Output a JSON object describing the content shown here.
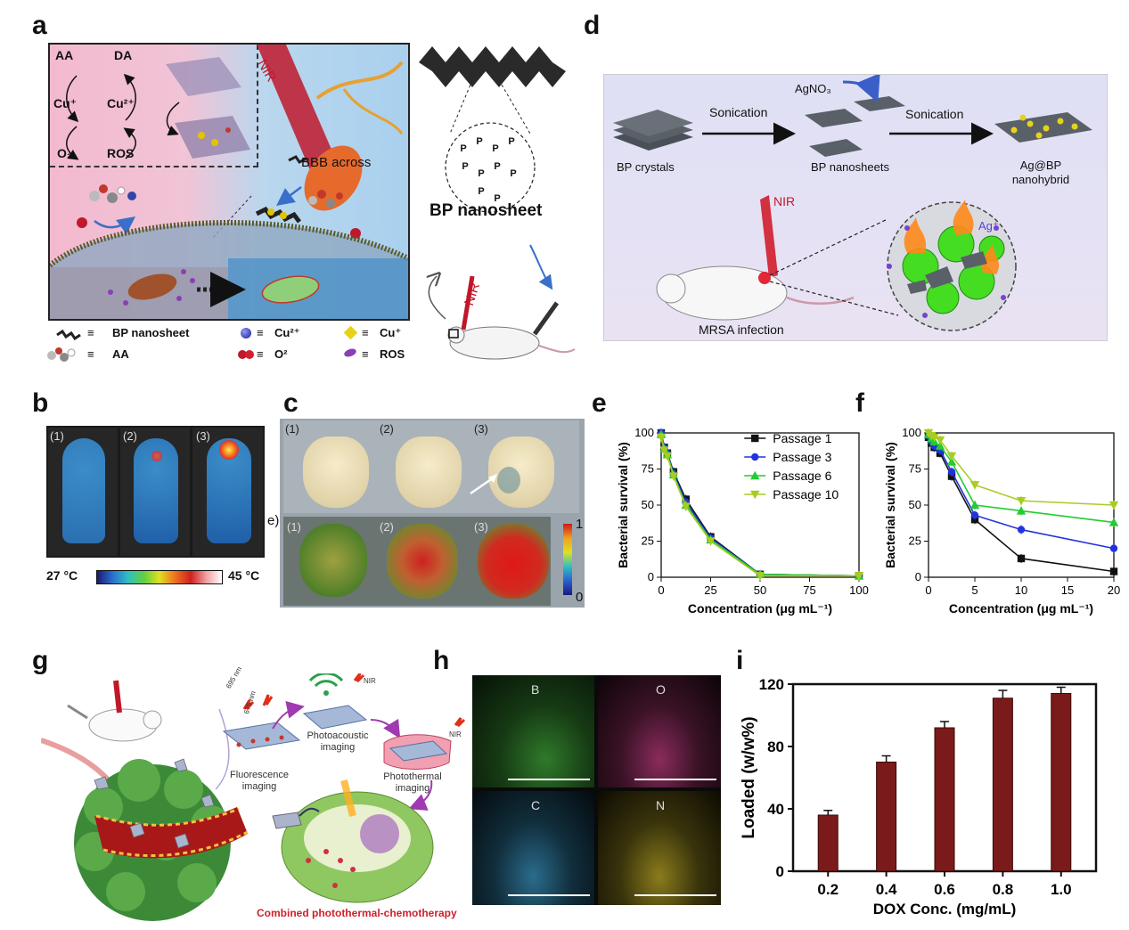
{
  "labels": {
    "a": "a",
    "b": "b",
    "c": "c",
    "d": "d",
    "e": "e",
    "f": "f",
    "g": "g",
    "h": "h",
    "i": "i"
  },
  "panel_a": {
    "aa": "AA",
    "da": "DA",
    "cu_plus": "Cu⁺",
    "cu2_plus": "Cu²⁺",
    "o2": "O₂",
    "ros": "ROS",
    "nir": "NIR",
    "bbb": "BBB across",
    "bp_nanosheet": "BP nanosheet",
    "legend": [
      {
        "sym": "≡",
        "text": "BP nanosheet"
      },
      {
        "sym": "≡",
        "text": "Cu²⁺"
      },
      {
        "sym": "≡",
        "text": "Cu⁺"
      },
      {
        "sym": "≡",
        "text": "AA"
      },
      {
        "sym": "≡",
        "text": "O²"
      },
      {
        "sym": "≡",
        "text": "ROS"
      }
    ],
    "p_atom": "P",
    "nir2": "NIR"
  },
  "panel_b": {
    "n1": "(1)",
    "n2": "(2)",
    "n3": "(3)",
    "tmin": "27 °C",
    "tmax": "45 °C"
  },
  "panel_c": {
    "n1": "(1)",
    "n2": "(2)",
    "n3": "(3)",
    "e": "e)",
    "b1": "(1)",
    "b2": "(2)",
    "b3": "(3)",
    "cmax": "1",
    "cmin": "0"
  },
  "panel_d": {
    "agno3": "AgNO₃",
    "sonication1": "Sonication",
    "sonication2": "Sonication",
    "bp_crystals": "BP crystals",
    "bp_nanosheets": "BP nanosheets",
    "agbp1": "Ag@BP",
    "agbp2": "nanohybrid",
    "nir": "NIR",
    "ag": "Ag⁺",
    "mrsa": "MRSA infection"
  },
  "panel_g": {
    "fluor1": "Fluorescence",
    "fluor2": "imaging",
    "photoac1": "Photoacoustic",
    "photoac2": "imaging",
    "phototh1": "Photothermal",
    "phototh2": "imaging",
    "nm695": "695 nm",
    "nm675": "675 nm",
    "nir1": "NIR",
    "nir2": "NIR",
    "combined": "Combined photothermal-chemotherapy"
  },
  "panel_h": {
    "b": "B",
    "o": "O",
    "c": "C",
    "n": "N"
  },
  "chart_data": [
    {
      "panel": "e",
      "type": "line",
      "xlabel": "Concentration (μg mL⁻¹)",
      "ylabel": "Bacterial survival (%)",
      "xlim": [
        0,
        100
      ],
      "ylim": [
        0,
        100
      ],
      "xticks": [
        0,
        25,
        50,
        75,
        100
      ],
      "yticks": [
        0,
        25,
        50,
        75,
        100
      ],
      "x": [
        0,
        1.56,
        3.125,
        6.25,
        12.5,
        25,
        50,
        100
      ],
      "legend_position": "top-right",
      "series": [
        {
          "name": "Passage 1",
          "color": "#111111",
          "marker": "square",
          "values": [
            100,
            90,
            86,
            73,
            54,
            28,
            2,
            1
          ]
        },
        {
          "name": "Passage 3",
          "color": "#2233dd",
          "marker": "circle",
          "values": [
            100,
            90,
            86,
            72,
            52,
            27,
            2,
            1
          ]
        },
        {
          "name": "Passage 6",
          "color": "#22cc33",
          "marker": "triangle-up",
          "values": [
            99,
            89,
            85,
            71,
            50,
            26,
            2,
            1
          ]
        },
        {
          "name": "Passage 10",
          "color": "#a8cc22",
          "marker": "triangle-down",
          "values": [
            97,
            88,
            84,
            70,
            49,
            25,
            1,
            1
          ]
        }
      ]
    },
    {
      "panel": "f",
      "type": "line",
      "xlabel": "Concentration (μg mL⁻¹)",
      "ylabel": "Bacterial survival (%)",
      "xlim": [
        0,
        20
      ],
      "ylim": [
        0,
        100
      ],
      "xticks": [
        0,
        5,
        10,
        15,
        20
      ],
      "yticks": [
        0,
        25,
        50,
        75,
        100
      ],
      "x": [
        0,
        0.3125,
        0.625,
        1.25,
        2.5,
        5,
        10,
        20
      ],
      "series": [
        {
          "name": "Passage 1",
          "color": "#111111",
          "marker": "square",
          "values": [
            97,
            93,
            90,
            86,
            70,
            40,
            13,
            4
          ]
        },
        {
          "name": "Passage 3",
          "color": "#2233dd",
          "marker": "circle",
          "values": [
            98,
            94,
            91,
            88,
            73,
            43,
            33,
            20
          ]
        },
        {
          "name": "Passage 6",
          "color": "#22cc33",
          "marker": "triangle-up",
          "values": [
            99,
            96,
            94,
            91,
            80,
            50,
            46,
            38
          ]
        },
        {
          "name": "Passage 10",
          "color": "#a8cc22",
          "marker": "triangle-down",
          "values": [
            100,
            98,
            97,
            95,
            84,
            64,
            53,
            50
          ]
        }
      ]
    },
    {
      "panel": "i",
      "type": "bar",
      "xlabel": "DOX Conc. (mg/mL)",
      "ylabel": "Loaded (w/w%)",
      "ylim": [
        0,
        120
      ],
      "yticks": [
        0,
        40,
        80,
        120
      ],
      "categories": [
        "0.2",
        "0.4",
        "0.6",
        "0.8",
        "1.0"
      ],
      "values": [
        36,
        70,
        92,
        111,
        114
      ],
      "errors": [
        3,
        4,
        4,
        5,
        4
      ],
      "color": "#7b1a1a"
    }
  ]
}
